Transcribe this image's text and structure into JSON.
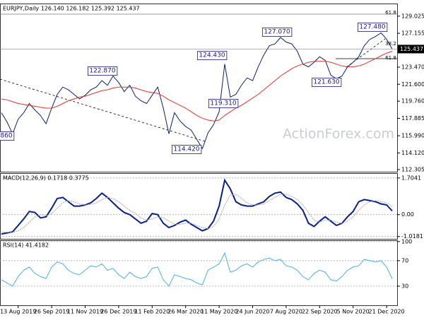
{
  "chart_data": [
    {
      "type": "line",
      "title": "EURJPY,Daily 126.140 126.182 125.392 125.437",
      "ylim": [
        112.07,
        130.4
      ],
      "yticks": [
        {
          "value": 129.025,
          "label": "129.025"
        },
        {
          "value": 127.155,
          "label": "127.155"
        },
        {
          "value": 123.47,
          "label": "123.470"
        },
        {
          "value": 121.6,
          "label": "121.600"
        },
        {
          "value": 119.76,
          "label": "119.760"
        },
        {
          "value": 117.885,
          "label": "117.885"
        },
        {
          "value": 115.99,
          "label": "115.990"
        },
        {
          "value": 114.12,
          "label": "114.120"
        },
        {
          "value": 112.305,
          "label": "112.305"
        }
      ],
      "last_label": "125.437",
      "series": [
        {
          "color": "#0b1f6e",
          "values": [
            118.5,
            117.5,
            116.2,
            117.8,
            118.5,
            119.5,
            118.8,
            118.2,
            117.3,
            119.0,
            120.5,
            121.3,
            121.0,
            120.5,
            120.0,
            120.4,
            121.0,
            121.3,
            122.0,
            121.5,
            122.5,
            121.8,
            120.8,
            121.5,
            120.3,
            119.8,
            119.5,
            120.4,
            121.3,
            119.0,
            116.2,
            118.5,
            117.6,
            117.0,
            116.6,
            115.6,
            114.6,
            116.3,
            117.2,
            118.6,
            123.8,
            120.2,
            120.5,
            121.5,
            122.3,
            122.0,
            123.5,
            124.8,
            125.8,
            126.0,
            126.7,
            126.2,
            126.0,
            125.2,
            123.8,
            123.5,
            124.0,
            124.6,
            124.2,
            122.6,
            122.2,
            122.5,
            123.5,
            124.0,
            124.6,
            125.8,
            126.5,
            126.8,
            127.2,
            126.5,
            125.437
          ]
        },
        {
          "color": "#e8332a",
          "values": [
            120.0,
            119.9,
            119.7,
            119.5,
            119.4,
            119.3,
            119.2,
            119.1,
            119.0,
            119.0,
            119.2,
            119.5,
            119.8,
            120.0,
            120.2,
            120.3,
            120.5,
            120.7,
            120.9,
            121.0,
            121.2,
            121.3,
            121.3,
            121.3,
            121.2,
            121.0,
            120.8,
            120.7,
            120.6,
            120.3,
            119.9,
            119.6,
            119.3,
            119.0,
            118.6,
            118.2,
            117.9,
            117.7,
            117.6,
            117.7,
            118.2,
            118.6,
            119.0,
            119.3,
            119.7,
            120.1,
            120.5,
            121.0,
            121.5,
            122.0,
            122.5,
            122.9,
            123.3,
            123.6,
            123.8,
            124.0,
            124.1,
            124.1,
            124.1,
            124.0,
            123.8,
            123.6,
            123.5,
            123.5,
            123.6,
            123.8,
            124.1,
            124.4,
            124.7,
            125.0,
            125.2
          ]
        }
      ],
      "annotations": [
        "127.070",
        "127.480",
        "124.430",
        "122.870",
        "121.630",
        "119.310",
        "114.420",
        "860",
        "61.8",
        "38.2",
        "61.8"
      ],
      "watermark": "ActionForex.com"
    },
    {
      "type": "line",
      "title": "MACD(12,26,9) 0.1718 0.3775",
      "ylim": [
        -1.125,
        1.929
      ],
      "yticks": [
        1.7041,
        {
          "value": 0,
          "label": "0.00"
        },
        -1.0181
      ],
      "series": [
        {
          "color": "#0b1f8a",
          "values": [
            -0.9,
            -0.85,
            -0.8,
            -0.5,
            -0.2,
            0.15,
            0.1,
            -0.15,
            -0.1,
            0.3,
            0.75,
            0.8,
            0.6,
            0.4,
            0.4,
            0.45,
            0.55,
            0.75,
            1.0,
            0.8,
            0.55,
            0.3,
            0.1,
            0.0,
            -0.2,
            -0.4,
            -0.3,
            0.05,
            0.0,
            -0.4,
            -0.6,
            -0.5,
            -0.35,
            -0.25,
            -0.45,
            -0.6,
            -0.75,
            -0.65,
            -0.3,
            0.4,
            1.6,
            1.2,
            0.6,
            0.45,
            0.4,
            0.4,
            0.5,
            0.6,
            0.85,
            1.0,
            1.05,
            0.8,
            0.7,
            0.5,
            0.2,
            -0.4,
            -0.55,
            -0.3,
            -0.1,
            -0.3,
            -0.5,
            -0.4,
            -0.1,
            0.15,
            0.6,
            0.7,
            0.65,
            0.6,
            0.5,
            0.45,
            0.1718
          ]
        },
        {
          "color": "#a8a8a8",
          "values": [
            -0.8,
            -0.82,
            -0.83,
            -0.75,
            -0.6,
            -0.35,
            -0.1,
            0.0,
            -0.05,
            0.05,
            0.3,
            0.55,
            0.65,
            0.6,
            0.5,
            0.45,
            0.47,
            0.55,
            0.7,
            0.8,
            0.75,
            0.6,
            0.4,
            0.2,
            0.05,
            -0.15,
            -0.25,
            -0.2,
            -0.1,
            -0.15,
            -0.3,
            -0.45,
            -0.45,
            -0.4,
            -0.4,
            -0.5,
            -0.6,
            -0.65,
            -0.55,
            -0.2,
            0.45,
            0.9,
            0.95,
            0.75,
            0.55,
            0.45,
            0.45,
            0.5,
            0.65,
            0.8,
            0.95,
            0.95,
            0.85,
            0.7,
            0.45,
            0.1,
            -0.25,
            -0.35,
            -0.25,
            -0.25,
            -0.35,
            -0.4,
            -0.3,
            -0.1,
            0.2,
            0.45,
            0.6,
            0.65,
            0.6,
            0.55,
            0.3775
          ]
        }
      ]
    },
    {
      "type": "line",
      "title": "RSI(14) 41.4182",
      "ylim": [
        0,
        102
      ],
      "yticks": [
        100,
        70,
        30
      ],
      "categories": [
        null,
        null,
        null,
        "13 Aug 2019",
        null,
        null,
        null,
        null,
        null,
        "26 Sep 2019",
        null,
        null,
        null,
        null,
        null,
        "11 Nov 2019",
        null,
        null,
        null,
        null,
        null,
        "26 Dec 2019",
        null,
        null,
        null,
        null,
        null,
        "11 Feb 2020",
        null,
        null,
        null,
        null,
        null,
        "26 Mar 2020",
        null,
        null,
        null,
        null,
        null,
        "11 May 2020",
        null,
        null,
        null,
        null,
        null,
        "24 Jun 2020",
        null,
        null,
        null,
        null,
        null,
        "7 Aug 2020",
        null,
        null,
        null,
        null,
        null,
        "22 Sep 2020",
        null,
        null,
        null,
        null,
        null,
        "5 Nov 2020",
        null,
        null,
        null,
        null,
        null,
        "21 Dec 2020",
        null
      ],
      "series": [
        {
          "color": "#4aaee8",
          "values": [
            40,
            35,
            30,
            45,
            55,
            60,
            50,
            45,
            42,
            60,
            68,
            65,
            55,
            50,
            48,
            55,
            62,
            60,
            65,
            55,
            58,
            48,
            42,
            52,
            45,
            42,
            45,
            58,
            60,
            40,
            30,
            48,
            45,
            42,
            40,
            35,
            32,
            55,
            60,
            65,
            82,
            52,
            55,
            62,
            65,
            60,
            68,
            72,
            74,
            70,
            72,
            62,
            60,
            55,
            45,
            40,
            50,
            55,
            52,
            40,
            38,
            45,
            55,
            60,
            62,
            72,
            70,
            68,
            70,
            60,
            41.4182
          ]
        }
      ]
    }
  ]
}
